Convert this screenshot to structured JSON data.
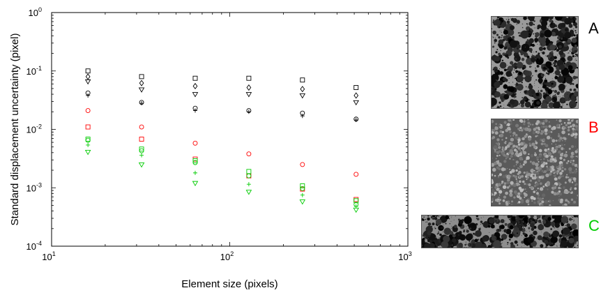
{
  "chart_data": {
    "type": "scatter",
    "xlabel": "Element size (pixels)",
    "ylabel": "Standard displacement uncertainty (pixel)",
    "xscale": "log",
    "yscale": "log",
    "xlim": [
      10,
      1000
    ],
    "ylim": [
      0.0001,
      1
    ],
    "grid": false,
    "x_ticks": [
      {
        "base": "10",
        "exp": "1"
      },
      {
        "base": "10",
        "exp": "2"
      },
      {
        "base": "10",
        "exp": "3"
      }
    ],
    "y_ticks": [
      {
        "base": "10",
        "exp": "-4"
      },
      {
        "base": "10",
        "exp": "-3"
      },
      {
        "base": "10",
        "exp": "-2"
      },
      {
        "base": "10",
        "exp": "-1"
      },
      {
        "base": "10",
        "exp": "0"
      }
    ],
    "x": [
      16,
      32,
      64,
      128,
      256,
      512
    ],
    "series": [
      {
        "color": "#000000",
        "marker": "square",
        "values": [
          0.1,
          0.08,
          0.075,
          0.075,
          0.07,
          0.052
        ]
      },
      {
        "color": "#000000",
        "marker": "diamond",
        "values": [
          0.08,
          0.062,
          0.055,
          0.052,
          0.049,
          0.038
        ]
      },
      {
        "color": "#000000",
        "marker": "triangle",
        "values": [
          0.066,
          0.048,
          0.04,
          0.04,
          0.038,
          0.029
        ]
      },
      {
        "color": "#000000",
        "marker": "circle",
        "values": [
          0.042,
          0.029,
          0.023,
          0.021,
          0.019,
          0.015
        ]
      },
      {
        "color": "#000000",
        "marker": "plus",
        "values": [
          0.038,
          0.028,
          0.021,
          0.02,
          0.017,
          0.0145
        ]
      },
      {
        "color": "#ff0000",
        "marker": "circle",
        "values": [
          0.021,
          0.011,
          0.0058,
          0.0038,
          0.0025,
          0.0017
        ]
      },
      {
        "color": "#ff0000",
        "marker": "square",
        "values": [
          0.011,
          0.0068,
          0.0031,
          0.0016,
          0.00095,
          0.00063
        ]
      },
      {
        "color": "#00cc00",
        "marker": "square",
        "values": [
          0.0068,
          0.0046,
          0.0029,
          0.0019,
          0.00108,
          0.0006
        ]
      },
      {
        "color": "#00cc00",
        "marker": "circle",
        "values": [
          0.0065,
          0.0043,
          0.0027,
          0.0016,
          0.00097,
          0.00052
        ]
      },
      {
        "color": "#00cc00",
        "marker": "plus",
        "values": [
          0.0054,
          0.0036,
          0.0018,
          0.00115,
          0.00075,
          0.00048
        ]
      },
      {
        "color": "#00cc00",
        "marker": "triangle",
        "values": [
          0.0041,
          0.0025,
          0.0012,
          0.00085,
          0.00058,
          0.00042
        ]
      }
    ]
  },
  "panels": [
    {
      "label": "A",
      "color": "#000000",
      "texture": "dark-speckle"
    },
    {
      "label": "B",
      "color": "#ff0000",
      "texture": "gray-low-contrast"
    },
    {
      "label": "C",
      "color": "#00cc00",
      "texture": "dark-speckle"
    }
  ]
}
